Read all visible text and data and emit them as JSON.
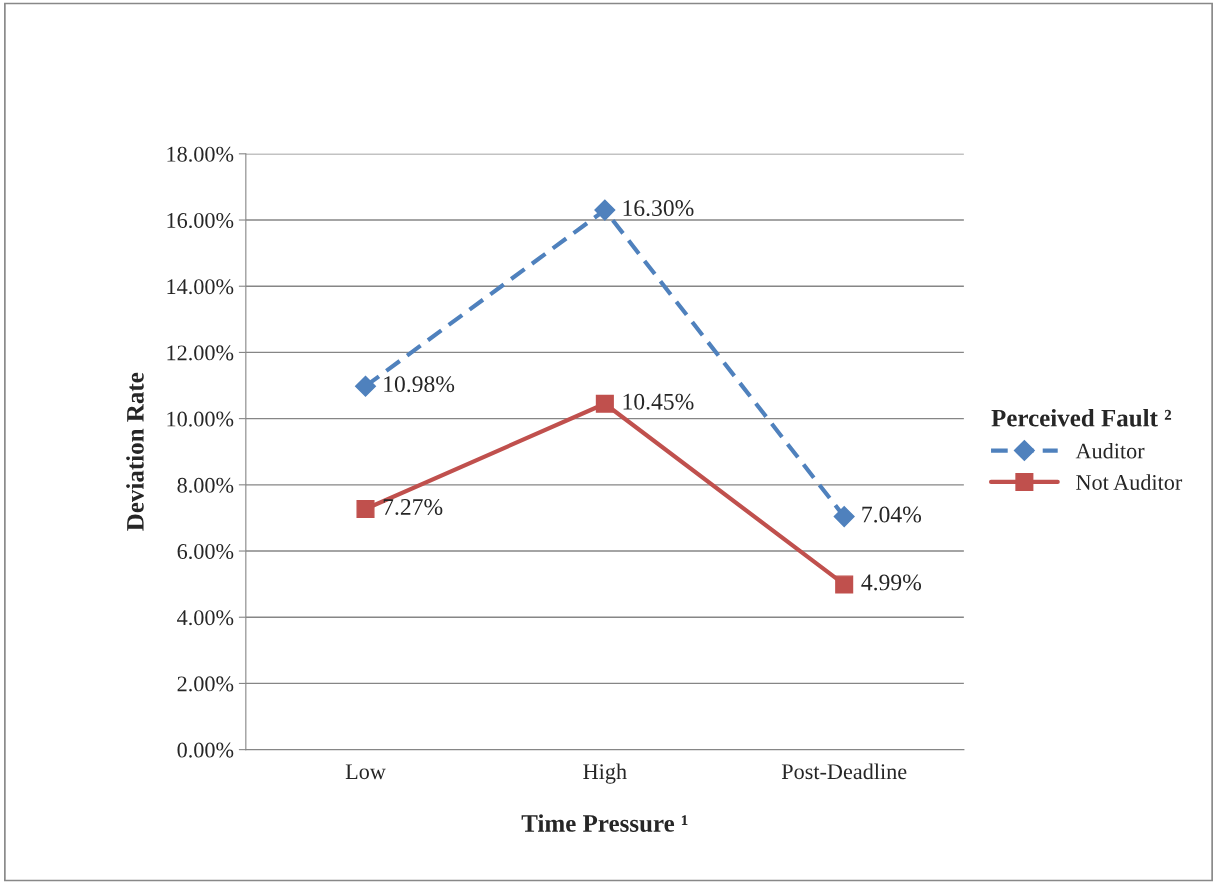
{
  "chart_data": {
    "type": "line",
    "xlabel": "Time Pressure ¹",
    "ylabel": "Deviation Rate",
    "legend_title": "Perceived Fault ²",
    "categories": [
      "Low",
      "High",
      "Post-Deadline"
    ],
    "series": [
      {
        "name": "Auditor",
        "color": "#4f81bd",
        "values": [
          10.98,
          16.3,
          7.04
        ],
        "value_labels": [
          "10.98%",
          "16.30%",
          "7.04%"
        ],
        "marker": "diamond",
        "line_style": "dashed"
      },
      {
        "name": "Not Auditor",
        "color": "#c0504d",
        "values": [
          7.27,
          10.45,
          4.99
        ],
        "value_labels": [
          "7.27%",
          "10.45%",
          "4.99%"
        ],
        "marker": "square",
        "line_style": "solid"
      }
    ],
    "ylim": [
      0,
      18
    ],
    "yticks": [
      {
        "value": 0,
        "label": "0.00%"
      },
      {
        "value": 2,
        "label": "2.00%"
      },
      {
        "value": 4,
        "label": "4.00%"
      },
      {
        "value": 6,
        "label": "6.00%"
      },
      {
        "value": 8,
        "label": "8.00%"
      },
      {
        "value": 10,
        "label": "10.00%"
      },
      {
        "value": 12,
        "label": "12.00%"
      },
      {
        "value": 14,
        "label": "14.00%"
      },
      {
        "value": 16,
        "label": "16.00%"
      },
      {
        "value": 18,
        "label": "18.00%"
      }
    ],
    "grid": "y",
    "legend": "right"
  }
}
